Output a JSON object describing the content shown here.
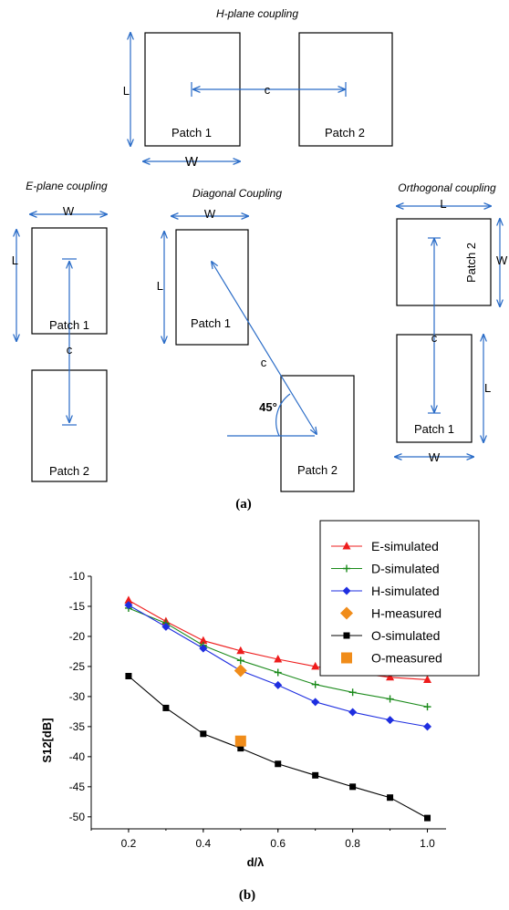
{
  "diagram": {
    "h_plane": {
      "title": "H-plane coupling",
      "L": "L",
      "W": "W",
      "c": "c",
      "patch1": "Patch 1",
      "patch2": "Patch 2"
    },
    "e_plane": {
      "title": "E-plane coupling",
      "W": "W",
      "L": "L",
      "c": "c",
      "patch1": "Patch 1",
      "patch2": "Patch 2"
    },
    "diagonal": {
      "title": "Diagonal Coupling",
      "W": "W",
      "L": "L",
      "c": "c",
      "angle": "45°",
      "patch1": "Patch 1",
      "patch2": "Patch 2"
    },
    "orthogonal": {
      "title": "Orthogonal coupling",
      "L_top": "L",
      "W_side": "W",
      "c": "c",
      "L_side": "L",
      "W_bottom": "W",
      "patch1": "Patch 1",
      "patch2": "Patch 2"
    },
    "caption": "(a)"
  },
  "chart_data": {
    "type": "line",
    "title": "",
    "xlabel": "d/λ",
    "ylabel": "S12[dB]",
    "xlim": [
      0.1,
      1.05
    ],
    "ylim": [
      -52,
      -10
    ],
    "xticks": [
      "0.2",
      "0.4",
      "0.6",
      "0.8",
      "1.0"
    ],
    "yticks": [
      "-10",
      "-15",
      "-20",
      "-25",
      "-30",
      "-35",
      "-40",
      "-45",
      "-50"
    ],
    "legend_position": "top-right",
    "series": [
      {
        "name": "E-simulated",
        "color": "#ee1c1c",
        "marker": "triangle",
        "x": [
          0.2,
          0.3,
          0.4,
          0.5,
          0.6,
          0.7,
          0.8,
          0.9,
          1.0
        ],
        "y": [
          -14.0,
          -17.5,
          -20.7,
          -22.4,
          -23.8,
          -25.0,
          -26.0,
          -26.8,
          -27.2
        ]
      },
      {
        "name": "D-simulated",
        "color": "#1a8a1a",
        "marker": "plus",
        "x": [
          0.2,
          0.3,
          0.4,
          0.5,
          0.6,
          0.7,
          0.8,
          0.9,
          1.0
        ],
        "y": [
          -15.3,
          -17.8,
          -21.5,
          -24.0,
          -26.0,
          -28.0,
          -29.3,
          -30.4,
          -31.7
        ]
      },
      {
        "name": "H-simulated",
        "color": "#1e2ee0",
        "marker": "diamond",
        "x": [
          0.2,
          0.3,
          0.4,
          0.5,
          0.6,
          0.7,
          0.8,
          0.9,
          1.0
        ],
        "y": [
          -14.8,
          -18.4,
          -22.0,
          -25.7,
          -28.1,
          -30.9,
          -32.6,
          -33.9,
          -35.0
        ]
      },
      {
        "name": "H-measured",
        "color": "#f08c1a",
        "marker": "big-diamond",
        "x": [
          0.5
        ],
        "y": [
          -25.7
        ]
      },
      {
        "name": "O-simulated",
        "color": "#000000",
        "marker": "square",
        "x": [
          0.2,
          0.3,
          0.4,
          0.5,
          0.6,
          0.7,
          0.8,
          0.9,
          1.0
        ],
        "y": [
          -26.6,
          -31.9,
          -36.2,
          -38.6,
          -41.2,
          -43.1,
          -45.0,
          -46.8,
          -50.2
        ]
      },
      {
        "name": "O-measured",
        "color": "#f08c1a",
        "marker": "big-square",
        "x": [
          0.5
        ],
        "y": [
          -37.4
        ]
      }
    ],
    "caption": "(b)"
  }
}
